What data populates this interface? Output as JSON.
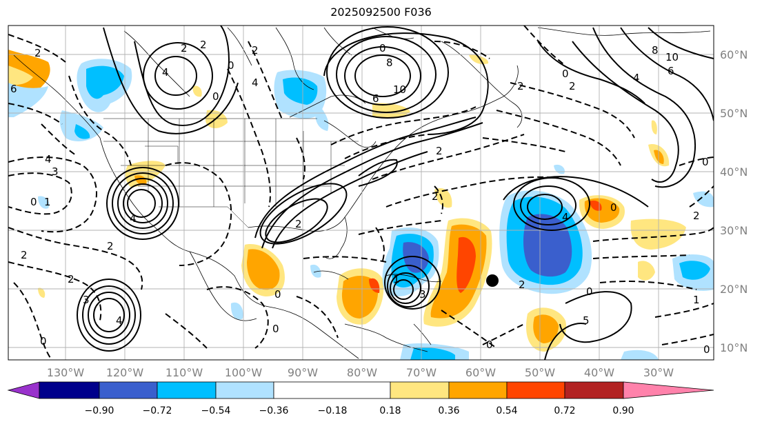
{
  "title": "2025092500 F036",
  "lon_labels": [
    "130°W",
    "120°W",
    "110°W",
    "100°W",
    "90°W",
    "80°W",
    "70°W",
    "60°W",
    "50°W",
    "40°W",
    "30°W"
  ],
  "lat_labels": [
    "60°N",
    "50°N",
    "40°N",
    "30°N",
    "20°N",
    "10°N"
  ],
  "colorbar": {
    "ticks": [
      "−0.90",
      "−0.72",
      "−0.54",
      "−0.36",
      "−0.18",
      "0.18",
      "0.36",
      "0.54",
      "0.72",
      "0.90"
    ],
    "colors": [
      "#9932cc",
      "#00008b",
      "#3a5fcd",
      "#00bfff",
      "#b0e2ff",
      "#ffffff",
      "#ffe680",
      "#ffa500",
      "#ff4500",
      "#b22222",
      "#ff82ab"
    ]
  },
  "contour_labels": [
    "2",
    "4",
    "2",
    "0",
    "2",
    "4",
    "0",
    "8",
    "6",
    "10",
    "8",
    "10",
    "6",
    "4",
    "2",
    "6",
    "4",
    "0",
    "2",
    "4",
    "2",
    "3",
    "0",
    "1",
    "2",
    "4",
    "3",
    "0",
    "2",
    "2",
    "3",
    "2",
    "0",
    "0",
    "2",
    "4",
    "5",
    "1",
    "0",
    "0",
    "0",
    "0",
    "2",
    "2",
    "0",
    "2",
    "1",
    "0"
  ],
  "marker": "storm-center-dot"
}
